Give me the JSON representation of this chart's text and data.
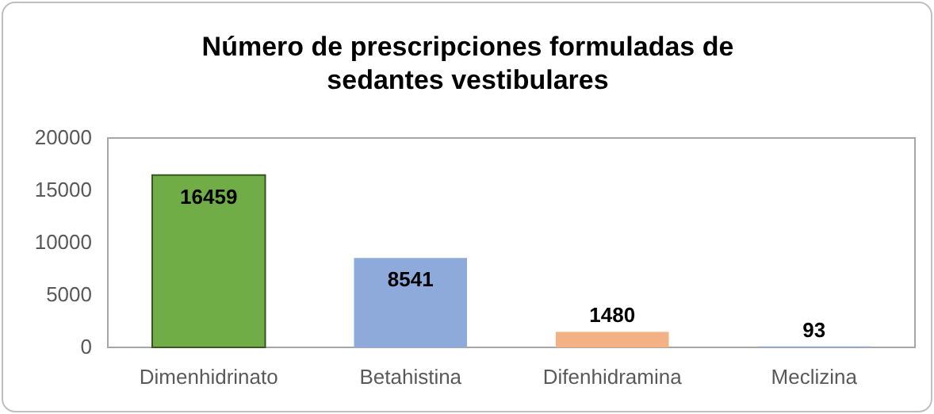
{
  "chart_data": {
    "type": "bar",
    "title": "Número de prescripciones formuladas de sedantes vestibulares",
    "categories": [
      "Dimenhidrinato",
      "Betahistina",
      "Difenhidramina",
      "Meclizina"
    ],
    "values": [
      16459,
      8541,
      1480,
      93
    ],
    "colors": [
      "#70ad47",
      "#8eaadb",
      "#f4b183",
      "#8eaadb"
    ],
    "ylim": [
      0,
      20000
    ],
    "yticks": [
      0,
      5000,
      10000,
      15000,
      20000
    ],
    "data_labels": true
  }
}
